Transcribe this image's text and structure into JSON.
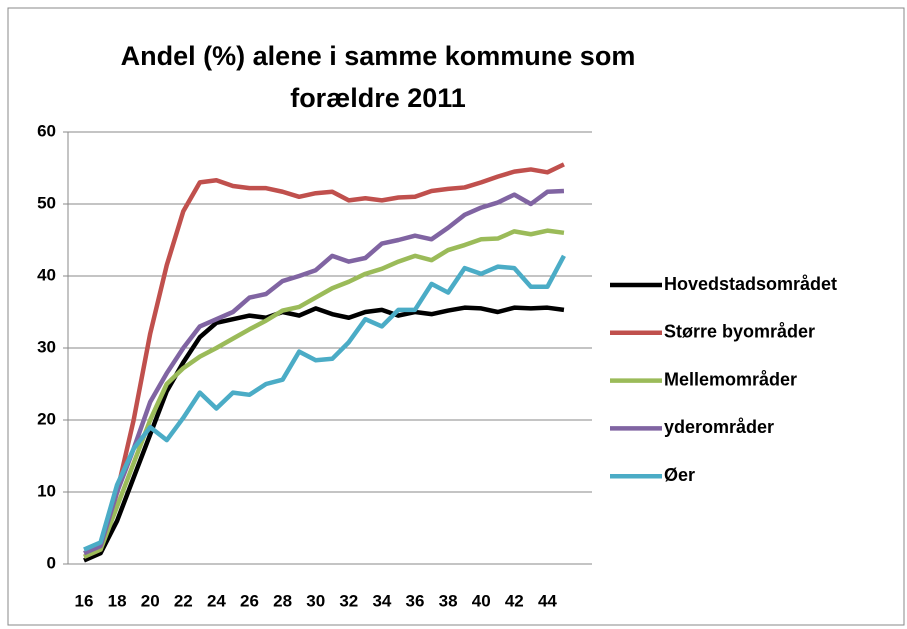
{
  "chart_data": {
    "type": "line",
    "title": [
      "Andel (%) alene i samme kommune som",
      "forældre 2011"
    ],
    "categories": [
      16,
      null,
      18,
      null,
      20,
      null,
      22,
      null,
      24,
      null,
      26,
      null,
      28,
      null,
      30,
      null,
      32,
      null,
      34,
      null,
      36,
      null,
      38,
      null,
      40,
      null,
      42,
      null,
      44,
      null
    ],
    "ylim": [
      0,
      60
    ],
    "yticks": [
      0,
      10,
      20,
      30,
      40,
      50,
      60
    ],
    "grid": true,
    "legend": "right",
    "series": [
      {
        "name": "Hovedstadsområdet",
        "color": "#000000",
        "values": [
          0.5,
          1.5,
          6,
          12,
          18,
          24,
          28,
          31.5,
          33.5,
          34,
          34.5,
          34.2,
          35,
          34.5,
          35.5,
          34.7,
          34.2,
          35,
          35.3,
          34.5,
          35,
          34.7,
          35.2,
          35.6,
          35.5,
          35,
          35.6,
          35.5,
          35.6,
          35.3
        ]
      },
      {
        "name": "Større byområder",
        "color": "#c0504d",
        "values": [
          1,
          2,
          10,
          20,
          32,
          41.5,
          49,
          53,
          53.3,
          52.5,
          52.2,
          52.2,
          51.7,
          51,
          51.5,
          51.7,
          50.5,
          50.8,
          50.5,
          50.9,
          51,
          51.8,
          52.1,
          52.3,
          53,
          53.8,
          54.5,
          54.8,
          54.4,
          55.5
        ]
      },
      {
        "name": "Mellemområder",
        "color": "#9bbb59",
        "values": [
          1,
          2,
          8,
          14,
          20,
          25,
          27.2,
          28.8,
          30,
          31.3,
          32.6,
          33.8,
          35.2,
          35.7,
          37,
          38.3,
          39.2,
          40.3,
          41,
          42,
          42.8,
          42.2,
          43.6,
          44.3,
          45.1,
          45.2,
          46.2,
          45.8,
          46.3,
          46
        ]
      },
      {
        "name": "yderområder",
        "color": "#8064a2",
        "values": [
          1.5,
          2.5,
          10,
          16,
          22.5,
          26.5,
          30,
          33,
          34,
          35,
          37,
          37.5,
          39.3,
          40,
          40.8,
          42.8,
          42,
          42.5,
          44.5,
          45,
          45.6,
          45.1,
          46.7,
          48.5,
          49.5,
          50.2,
          51.3,
          50,
          51.7,
          51.8
        ]
      },
      {
        "name": "Øer",
        "color": "#4bacc6",
        "values": [
          2,
          3,
          11,
          16,
          19,
          17.2,
          20.3,
          23.8,
          21.6,
          23.8,
          23.5,
          25,
          25.6,
          29.5,
          28.3,
          28.5,
          30.8,
          34,
          33,
          35.3,
          35.3,
          38.9,
          37.7,
          41.1,
          40.3,
          41.3,
          41.1,
          38.5,
          38.5,
          42.8
        ]
      }
    ]
  }
}
